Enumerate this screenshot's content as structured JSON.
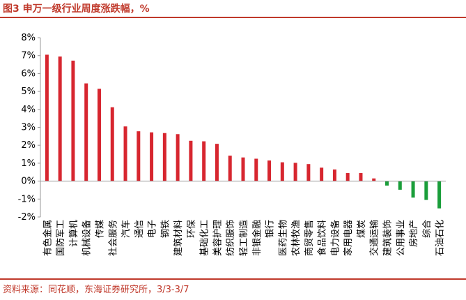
{
  "header": {
    "title": "图3  申万一级行业周度涨跌幅，%"
  },
  "footer": {
    "source": "资料来源：同花顺，东海证券研究所，3/3-3/7"
  },
  "colors": {
    "positive": "#d7262f",
    "negative": "#1a9e3a",
    "accent": "#c0392b",
    "axis": "#999999"
  },
  "chart_data": {
    "type": "bar",
    "title": "申万一级行业周度涨跌幅，%",
    "xlabel": "",
    "ylabel": "",
    "ylim": [
      -2,
      8
    ],
    "yticks": [
      -2,
      -1,
      0,
      1,
      2,
      3,
      4,
      5,
      6,
      7,
      8
    ],
    "ytick_labels": [
      "-2%",
      "-1%",
      "0%",
      "1%",
      "2%",
      "3%",
      "4%",
      "5%",
      "6%",
      "7%",
      "8%"
    ],
    "grid": false,
    "legend": "none",
    "categories": [
      "有色金属",
      "国防军工",
      "计算机",
      "机械设备",
      "传媒",
      "社会服务",
      "汽车",
      "通信",
      "电子",
      "钢铁",
      "建筑材料",
      "环保",
      "基础化工",
      "美容护理",
      "纺织服饰",
      "轻工制造",
      "非银金融",
      "银行",
      "医药生物",
      "农林牧渔",
      "商贸零售",
      "食品饮料",
      "电力设备",
      "家用电器",
      "煤炭",
      "交通运输",
      "建筑装饰",
      "公用事业",
      "房地产",
      "综合",
      "石油石化"
    ],
    "values": [
      7.05,
      6.95,
      6.72,
      5.45,
      5.15,
      4.12,
      3.05,
      2.78,
      2.72,
      2.68,
      2.62,
      2.25,
      2.22,
      2.08,
      1.42,
      1.32,
      1.25,
      1.15,
      1.05,
      1.02,
      0.95,
      0.75,
      0.65,
      0.45,
      0.45,
      0.15,
      -0.25,
      -0.48,
      -0.92,
      -1.05,
      -1.52
    ]
  }
}
